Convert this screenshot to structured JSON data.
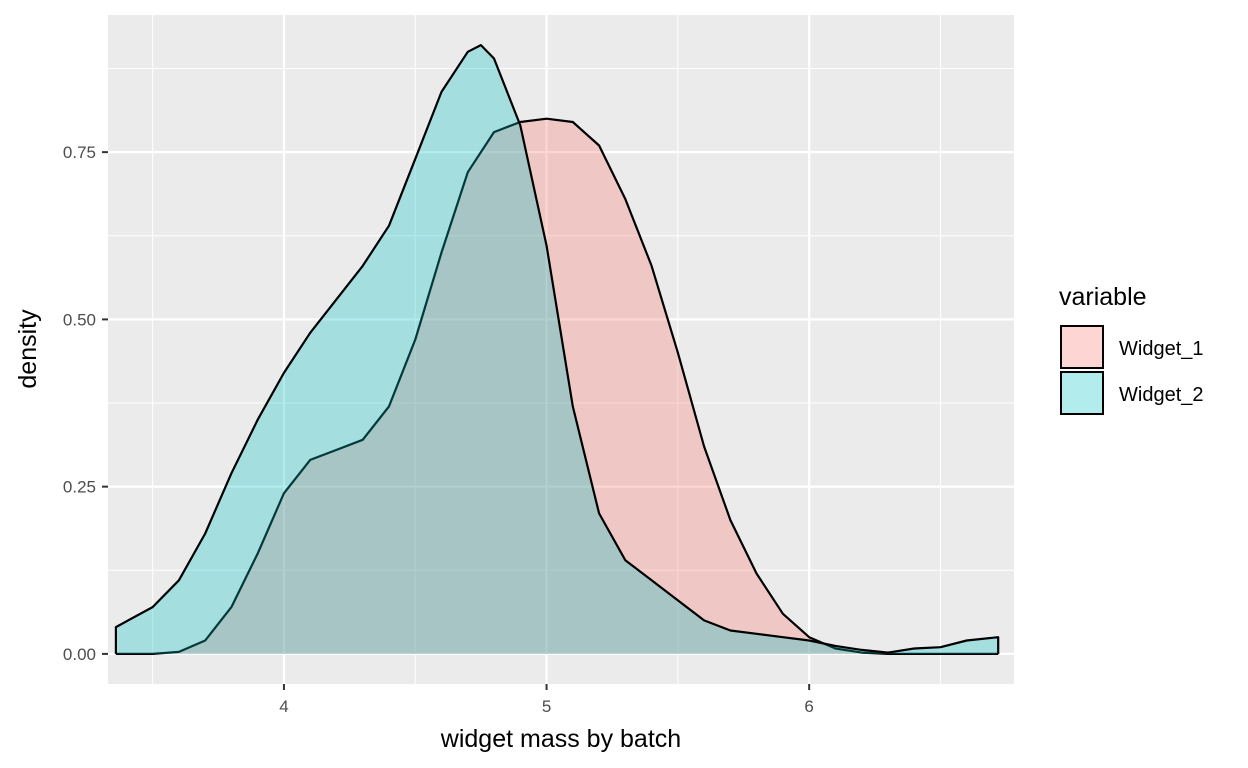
{
  "chart_data": {
    "type": "area",
    "subtype": "density",
    "xlabel": "widget mass by batch",
    "ylabel": "density",
    "xlim": [
      3.33,
      6.78
    ],
    "ylim": [
      -0.045,
      0.955
    ],
    "x_ticks": [
      4,
      5,
      6
    ],
    "x_tick_labels": [
      "4",
      "5",
      "6"
    ],
    "x_minor_ticks": [
      3.5,
      4.5,
      5.5,
      6.5
    ],
    "y_ticks": [
      0,
      0.25,
      0.5,
      0.75
    ],
    "y_tick_labels": [
      "0.00",
      "0.25",
      "0.50",
      "0.75"
    ],
    "y_minor_ticks": [
      0.125,
      0.375,
      0.625,
      0.875
    ],
    "grid": true,
    "legend": {
      "title": "variable",
      "position": "right",
      "entries": [
        "Widget_1",
        "Widget_2"
      ]
    },
    "series": [
      {
        "name": "Widget_1",
        "color": "#F8766D",
        "fill_alpha": 0.3,
        "x": [
          3.36,
          3.5,
          3.6,
          3.7,
          3.8,
          3.9,
          4.0,
          4.1,
          4.2,
          4.3,
          4.4,
          4.5,
          4.6,
          4.7,
          4.8,
          4.9,
          5.0,
          5.1,
          5.2,
          5.3,
          5.4,
          5.5,
          5.6,
          5.7,
          5.8,
          5.9,
          6.0,
          6.1,
          6.2,
          6.3,
          6.4,
          6.5,
          6.6,
          6.72
        ],
        "y": [
          0.0,
          0.0,
          0.003,
          0.02,
          0.07,
          0.15,
          0.24,
          0.29,
          0.305,
          0.32,
          0.37,
          0.47,
          0.6,
          0.72,
          0.78,
          0.795,
          0.8,
          0.795,
          0.76,
          0.68,
          0.58,
          0.45,
          0.31,
          0.2,
          0.12,
          0.06,
          0.025,
          0.008,
          0.002,
          0.0,
          0.0,
          0.0,
          0.0,
          0.0
        ]
      },
      {
        "name": "Widget_2",
        "color": "#00BFC4",
        "fill_alpha": 0.3,
        "x": [
          3.36,
          3.5,
          3.6,
          3.7,
          3.8,
          3.9,
          4.0,
          4.1,
          4.2,
          4.3,
          4.4,
          4.5,
          4.6,
          4.7,
          4.75,
          4.8,
          4.9,
          5.0,
          5.1,
          5.2,
          5.3,
          5.4,
          5.5,
          5.6,
          5.7,
          5.8,
          5.9,
          6.0,
          6.1,
          6.2,
          6.3,
          6.4,
          6.5,
          6.6,
          6.72
        ],
        "y": [
          0.04,
          0.07,
          0.11,
          0.18,
          0.27,
          0.35,
          0.42,
          0.48,
          0.53,
          0.58,
          0.64,
          0.74,
          0.84,
          0.9,
          0.91,
          0.89,
          0.79,
          0.61,
          0.37,
          0.21,
          0.14,
          0.11,
          0.08,
          0.05,
          0.035,
          0.03,
          0.025,
          0.02,
          0.012,
          0.006,
          0.002,
          0.008,
          0.01,
          0.02,
          0.025
        ]
      }
    ]
  }
}
